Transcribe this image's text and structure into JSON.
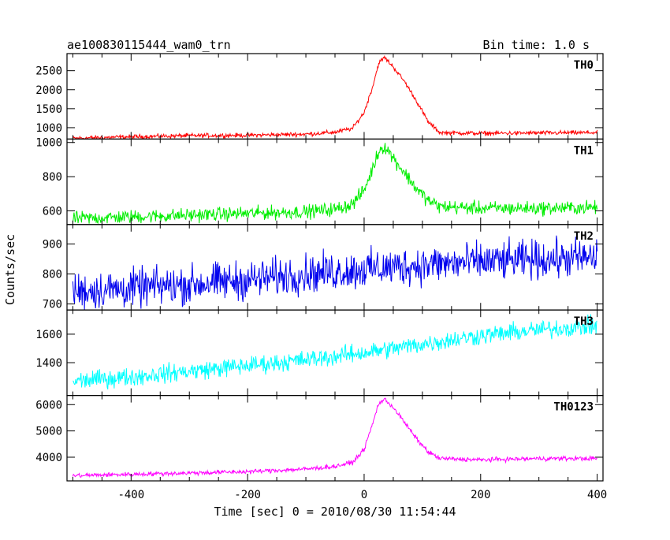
{
  "title_left": "ae100830115444_wam0_trn",
  "title_right": "Bin time: 1.0 s",
  "xlabel": "Time [sec] 0 = 2010/08/30 11:54:44",
  "ylabel": "Counts/sec",
  "chart_data": [
    {
      "type": "line",
      "name": "TH0",
      "color": "#ff0000",
      "xlim": [
        -510,
        410
      ],
      "ylim": [
        700,
        2950
      ],
      "yticks": [
        1000,
        1500,
        2000,
        2500
      ],
      "x": [
        -500,
        -400,
        -300,
        -200,
        -100,
        -50,
        -20,
        0,
        15,
        25,
        35,
        50,
        70,
        90,
        110,
        130,
        200,
        300,
        400
      ],
      "values": [
        720,
        760,
        790,
        800,
        830,
        880,
        980,
        1400,
        2100,
        2700,
        2850,
        2600,
        2200,
        1700,
        1150,
        870,
        850,
        860,
        870
      ],
      "noise": 40
    },
    {
      "type": "line",
      "name": "TH1",
      "color": "#00ee00",
      "xlim": [
        -510,
        410
      ],
      "ylim": [
        520,
        1020
      ],
      "yticks": [
        600,
        800,
        1000
      ],
      "x": [
        -500,
        -400,
        -300,
        -200,
        -100,
        -50,
        -20,
        0,
        15,
        25,
        35,
        50,
        70,
        90,
        110,
        130,
        200,
        300,
        400
      ],
      "values": [
        555,
        565,
        575,
        585,
        595,
        610,
        640,
        720,
        850,
        950,
        980,
        910,
        820,
        730,
        660,
        625,
        615,
        615,
        620
      ],
      "noise": 28
    },
    {
      "type": "line",
      "name": "TH2",
      "color": "#0000ee",
      "xlim": [
        -510,
        410
      ],
      "ylim": [
        680,
        965
      ],
      "yticks": [
        700,
        800,
        900
      ],
      "x": [
        -500,
        -400,
        -300,
        -200,
        -100,
        0,
        100,
        200,
        300,
        400
      ],
      "values": [
        742,
        752,
        765,
        780,
        800,
        815,
        830,
        840,
        848,
        855
      ],
      "noise": 45
    },
    {
      "type": "line",
      "name": "TH3",
      "color": "#00ffff",
      "xlim": [
        -510,
        410
      ],
      "ylim": [
        1170,
        1770
      ],
      "yticks": [
        1400,
        1600
      ],
      "x": [
        -500,
        -400,
        -300,
        -200,
        -100,
        0,
        100,
        200,
        300,
        400
      ],
      "values": [
        1270,
        1300,
        1340,
        1380,
        1420,
        1470,
        1530,
        1590,
        1630,
        1660
      ],
      "noise": 45
    },
    {
      "type": "line",
      "name": "TH0123",
      "color": "#ff00ff",
      "xlim": [
        -510,
        410
      ],
      "ylim": [
        3100,
        6350
      ],
      "yticks": [
        4000,
        5000,
        6000
      ],
      "x": [
        -500,
        -400,
        -300,
        -200,
        -100,
        -50,
        -20,
        0,
        15,
        25,
        35,
        50,
        70,
        90,
        110,
        130,
        200,
        300,
        400
      ],
      "values": [
        3300,
        3350,
        3400,
        3450,
        3550,
        3650,
        3800,
        4300,
        5300,
        6050,
        6200,
        5900,
        5300,
        4700,
        4200,
        3950,
        3900,
        3950,
        3950
      ],
      "noise": 60
    }
  ],
  "xticks": [
    -400,
    -200,
    0,
    200,
    400
  ]
}
